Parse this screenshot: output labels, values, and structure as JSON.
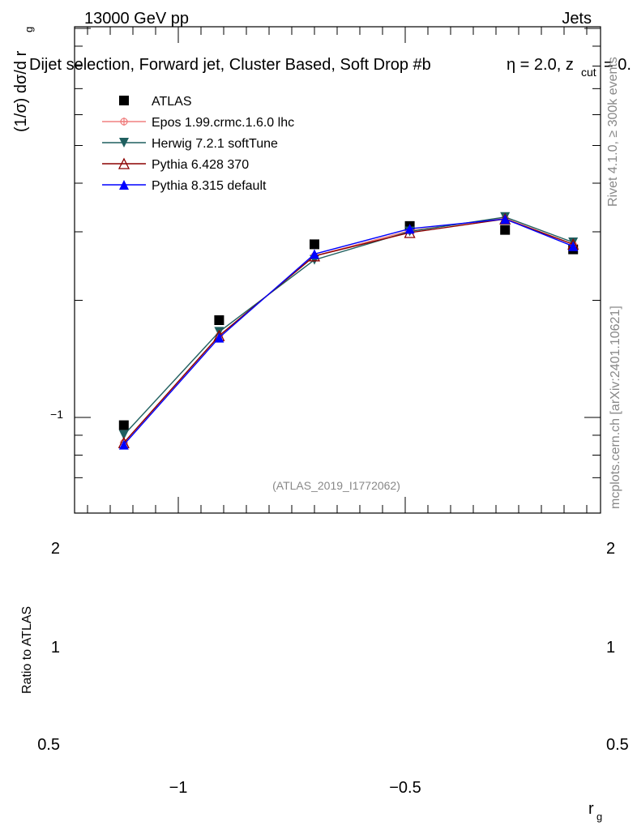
{
  "header": {
    "energy": "13000 GeV pp",
    "process": "Jets",
    "selection": "Dijet selection, Forward jet, Cluster Based, Soft Drop #b",
    "eta_eq": "η = 2.0, z",
    "cut_sub": "cut",
    "eq_tail": "= 0."
  },
  "side": {
    "rivet": "Rivet 4.1.0, ≥ 300k events",
    "mcplots": "mcplots.cern.ch [arXiv:2401.10621]"
  },
  "watermark": "(ATLAS_2019_I1772062)",
  "axes": {
    "ylabel_main": "(1/σ) dσ/d r",
    "ylabel_sub": "g",
    "ylabel_ratio": "Ratio to ATLAS",
    "xlabel_main": "r",
    "xlabel_sub": "g",
    "ytick_minus1": "−1",
    "xticks": [
      "−1",
      "−0.5"
    ],
    "ratio_ticks": [
      "2",
      "1",
      "0.5"
    ]
  },
  "colors": {
    "atlas": "#000000",
    "epos": "#f08080",
    "herwig": "#1f5f5f",
    "pythia6": "#8b0000",
    "pythia8": "#0000ff"
  },
  "chart_data": {
    "type": "line",
    "x": [
      -1.12,
      -0.91,
      -0.7,
      -0.49,
      -0.28,
      -0.13
    ],
    "ylim_log": [
      -1.22,
      0.0
    ],
    "xlim": [
      -1.25,
      -0.06
    ],
    "series": [
      {
        "name": "ATLAS",
        "marker": "square",
        "values": [
          -1.02,
          -0.75,
          -0.555,
          -0.508,
          -0.518,
          -0.568
        ]
      },
      {
        "name": "Epos 1.99.crmc.1.6.0 lhc",
        "marker": "cross",
        "values": [
          -1.065,
          -0.79,
          -0.585,
          -0.52,
          -0.488,
          -0.555
        ]
      },
      {
        "name": "Herwig 7.2.1 softTune",
        "marker": "down-triangle",
        "values": [
          -1.045,
          -0.78,
          -0.595,
          -0.522,
          -0.485,
          -0.55
        ]
      },
      {
        "name": "Pythia 6.428 370",
        "marker": "open-triangle",
        "values": [
          -1.065,
          -0.79,
          -0.585,
          -0.525,
          -0.49,
          -0.555
        ]
      },
      {
        "name": "Pythia 8.315 default",
        "marker": "triangle",
        "values": [
          -1.07,
          -0.795,
          -0.58,
          -0.515,
          -0.49,
          -0.56
        ]
      }
    ]
  }
}
